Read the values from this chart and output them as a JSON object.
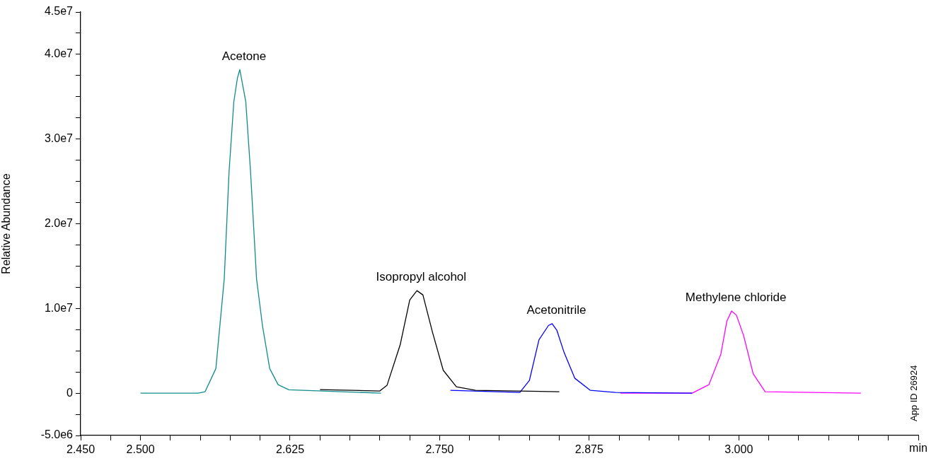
{
  "chart_data": {
    "type": "line",
    "xlabel": "min",
    "ylabel": "Relative Abundance",
    "annotations": [
      "App ID 26924"
    ],
    "xlim": [
      2.45,
      3.15
    ],
    "xticks": [
      {
        "value": 2.45,
        "label": "2.450"
      },
      {
        "value": 2.475,
        "label": null
      },
      {
        "value": 2.5,
        "label": "2.500"
      },
      {
        "value": 2.525,
        "label": null
      },
      {
        "value": 2.55,
        "label": null
      },
      {
        "value": 2.575,
        "label": null
      },
      {
        "value": 2.6,
        "label": null
      },
      {
        "value": 2.625,
        "label": "2.625"
      },
      {
        "value": 2.65,
        "label": null
      },
      {
        "value": 2.675,
        "label": null
      },
      {
        "value": 2.7,
        "label": null
      },
      {
        "value": 2.725,
        "label": null
      },
      {
        "value": 2.75,
        "label": "2.750"
      },
      {
        "value": 2.775,
        "label": null
      },
      {
        "value": 2.8,
        "label": null
      },
      {
        "value": 2.825,
        "label": null
      },
      {
        "value": 2.85,
        "label": null
      },
      {
        "value": 2.875,
        "label": "2.875"
      },
      {
        "value": 2.9,
        "label": null
      },
      {
        "value": 2.925,
        "label": null
      },
      {
        "value": 2.95,
        "label": null
      },
      {
        "value": 2.975,
        "label": null
      },
      {
        "value": 3.0,
        "label": "3.000"
      },
      {
        "value": 3.025,
        "label": null
      },
      {
        "value": 3.05,
        "label": null
      },
      {
        "value": 3.075,
        "label": null
      },
      {
        "value": 3.1,
        "label": null
      },
      {
        "value": 3.125,
        "label": null
      },
      {
        "value": 3.15,
        "label": null
      }
    ],
    "ylim": [
      -5000000,
      45000000
    ],
    "yticks": [
      {
        "value": -5000000,
        "label": "-5.0e6"
      },
      {
        "value": -2500000,
        "label": null
      },
      0,
      {
        "value": 2500000,
        "label": null
      },
      {
        "value": 5000000,
        "label": null
      },
      {
        "value": 7500000,
        "label": null
      },
      {
        "value": 10000000,
        "label": "1.0e7"
      },
      {
        "value": 12500000,
        "label": null
      },
      {
        "value": 15000000,
        "label": null
      },
      {
        "value": 17500000,
        "label": null
      },
      {
        "value": 20000000,
        "label": "2.0e7"
      },
      {
        "value": 22500000,
        "label": null
      },
      {
        "value": 25000000,
        "label": null
      },
      {
        "value": 27500000,
        "label": null
      },
      {
        "value": 30000000,
        "label": "3.0e7"
      },
      {
        "value": 32500000,
        "label": null
      },
      {
        "value": 35000000,
        "label": null
      },
      {
        "value": 37500000,
        "label": null
      },
      {
        "value": 40000000,
        "label": "4.0e7"
      },
      {
        "value": 42500000,
        "label": null
      },
      {
        "value": 45000000,
        "label": "4.5e7"
      }
    ],
    "grid": false,
    "legend": false,
    "marker": "none",
    "line_style": "solid",
    "series": [
      {
        "name": "Acetone",
        "color": "#108c8c",
        "x": [
          2.5,
          2.548,
          2.554,
          2.563,
          2.57,
          2.574,
          2.578,
          2.581,
          2.583,
          2.588,
          2.592,
          2.597,
          2.602,
          2.608,
          2.615,
          2.624,
          2.701
        ],
        "values": [
          0,
          0,
          170000,
          2900000,
          13500000,
          26100000,
          34400000,
          37200000,
          38200000,
          34400000,
          26100000,
          13500000,
          7900000,
          2900000,
          1000000,
          400000,
          0
        ]
      },
      {
        "name": "Isopropyl alcohol",
        "color": "#000000",
        "x": [
          2.65,
          2.7,
          2.706,
          2.717,
          2.725,
          2.731,
          2.736,
          2.744,
          2.753,
          2.764,
          2.78,
          2.85
        ],
        "values": [
          420000,
          250000,
          920000,
          5700000,
          11000000,
          12100000,
          11600000,
          7200000,
          2700000,
          750000,
          330000,
          170000
        ]
      },
      {
        "name": "Acetonitrile",
        "color": "#0000ff",
        "x": [
          2.759,
          2.817,
          2.825,
          2.833,
          2.841,
          2.844,
          2.848,
          2.854,
          2.863,
          2.876,
          2.897,
          2.961
        ],
        "values": [
          330000,
          80000,
          1500000,
          6300000,
          8000000,
          8200000,
          7400000,
          4800000,
          1750000,
          330000,
          80000,
          0
        ]
      },
      {
        "name": "Methylene chloride",
        "color": "#ff00ff",
        "x": [
          2.901,
          2.961,
          2.975,
          2.985,
          2.99,
          2.994,
          2.998,
          3.004,
          3.012,
          3.022,
          3.102
        ],
        "values": [
          0,
          0,
          1000000,
          4600000,
          8500000,
          9700000,
          9200000,
          6800000,
          2300000,
          170000,
          0
        ]
      }
    ]
  }
}
